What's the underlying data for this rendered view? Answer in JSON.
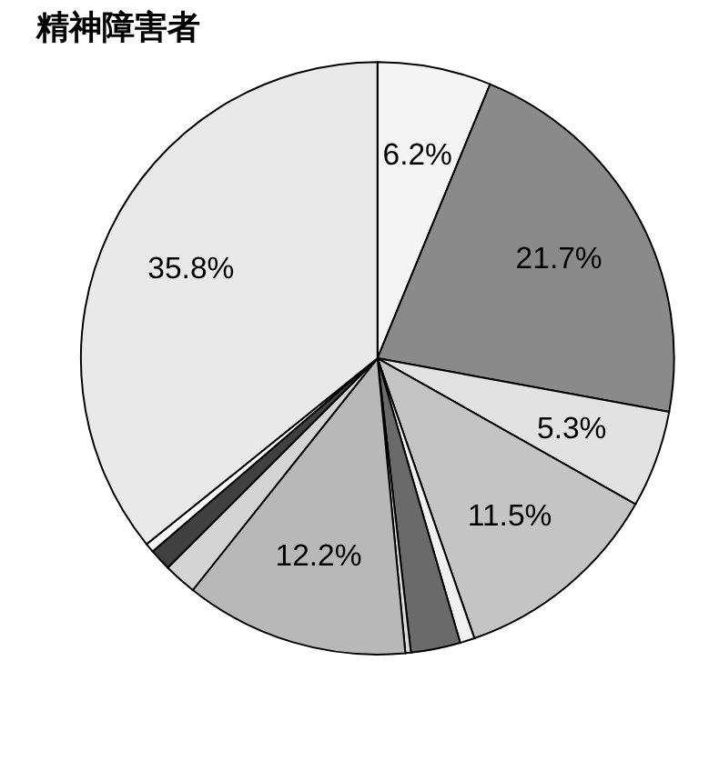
{
  "chart_data": {
    "type": "pie",
    "title": "精神障害者",
    "categories": [
      null,
      null,
      null,
      null,
      null,
      null,
      null,
      null,
      null,
      null,
      null,
      null
    ],
    "values": [
      6.2,
      21.7,
      5.3,
      11.5,
      0.8,
      2.7,
      0.3,
      12.2,
      1.8,
      1.2,
      0.5,
      35.8
    ],
    "value_labels": [
      "6.2%",
      "21.7%",
      "5.3%",
      "11.5%",
      null,
      null,
      null,
      "12.2%",
      null,
      null,
      null,
      "35.8%"
    ],
    "colors": [
      "#f4f4f4",
      "#8a8a8a",
      "#e2e2e2",
      "#c4c4c4",
      "#f0f0f0",
      "#6a6a6a",
      "#dddddd",
      "#b8b8b8",
      "#d4d4d4",
      "#404040",
      "#fafafa",
      "#e9e9e9"
    ],
    "legend": false
  }
}
